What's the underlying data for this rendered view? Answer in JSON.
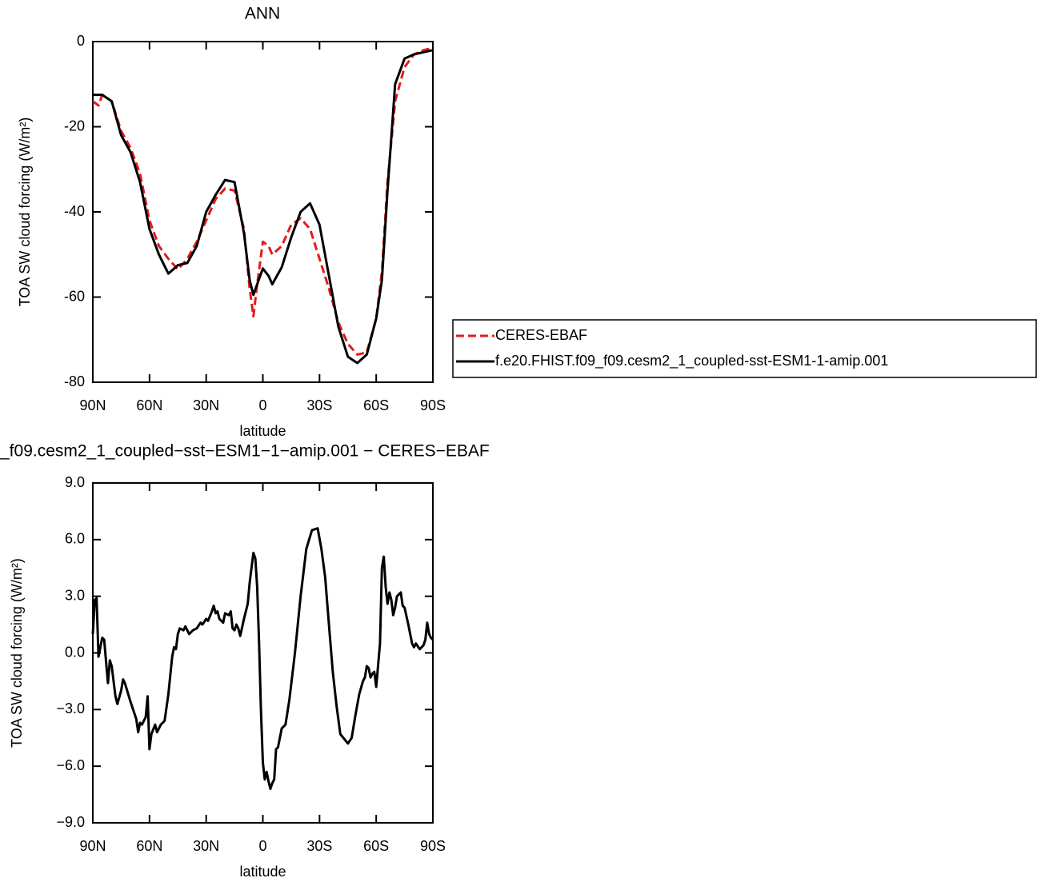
{
  "chart_data": [
    {
      "type": "line",
      "title": "ANN",
      "xlabel": "latitude",
      "ylabel": "TOA SW cloud forcing (W/m²)",
      "xlim": [
        90,
        -90
      ],
      "xticks": [
        {
          "value": 90,
          "label": "90N"
        },
        {
          "value": 60,
          "label": "60N"
        },
        {
          "value": 30,
          "label": "30N"
        },
        0,
        {
          "value": -30,
          "label": "30S"
        },
        {
          "value": -60,
          "label": "60S"
        },
        {
          "value": -90,
          "label": "90S"
        }
      ],
      "ylim": [
        -80,
        0
      ],
      "yticks": [
        0,
        -20,
        -40,
        -60,
        -80
      ],
      "x": [
        90,
        87,
        85,
        80,
        75,
        70,
        65,
        60,
        55,
        50,
        45,
        40,
        35,
        30,
        25,
        20,
        15,
        10,
        7,
        5,
        3,
        0,
        -3,
        -5,
        -10,
        -15,
        -20,
        -25,
        -30,
        -35,
        -40,
        -45,
        -50,
        -55,
        -60,
        -63,
        -66,
        -70,
        -75,
        -80,
        -85,
        -90
      ],
      "series": [
        {
          "name": "CERES-EBAF",
          "color": "#e41a1c",
          "style": "dashed",
          "values": [
            -14,
            -15,
            -12.5,
            -14,
            -21,
            -25,
            -31,
            -42,
            -48,
            -51,
            -53.5,
            -51,
            -47,
            -42,
            -37,
            -34.5,
            -35,
            -44,
            -58,
            -64.5,
            -57,
            -47,
            -48,
            -50,
            -48,
            -43,
            -41.5,
            -44,
            -51,
            -58,
            -66,
            -71,
            -73.5,
            -73,
            -65,
            -54,
            -33,
            -14,
            -6,
            -3,
            -2,
            -1.5
          ]
        },
        {
          "name": "f.e20.FHIST.f09_f09.cesm2_1_coupled-sst-ESM1-1-amip.001",
          "color": "#000000",
          "style": "solid",
          "values": [
            -12.5,
            -12.5,
            -12.5,
            -14,
            -22,
            -26,
            -33,
            -44,
            -50,
            -54.5,
            -52.5,
            -52,
            -48,
            -40,
            -36,
            -32.5,
            -33,
            -45,
            -56,
            -59.5,
            -57,
            -53.3,
            -55,
            -57,
            -53,
            -46,
            -40,
            -38,
            -43,
            -55,
            -67,
            -74,
            -75.5,
            -73.5,
            -65,
            -56,
            -35,
            -10,
            -4,
            -3,
            -2.5,
            -2
          ]
        }
      ]
    },
    {
      "type": "line",
      "title": "_f09.cesm2_1_coupled−sst−ESM1−1−amip.001 − CERES−EBAF",
      "xlabel": "latitude",
      "ylabel": "TOA SW cloud forcing (W/m²)",
      "xlim": [
        90,
        -90
      ],
      "xticks": [
        {
          "value": 90,
          "label": "90N"
        },
        {
          "value": 60,
          "label": "60N"
        },
        {
          "value": 30,
          "label": "30N"
        },
        0,
        {
          "value": -30,
          "label": "30S"
        },
        {
          "value": -60,
          "label": "60S"
        },
        {
          "value": -90,
          "label": "90S"
        }
      ],
      "ylim": [
        -9,
        9
      ],
      "yticks": [
        {
          "value": 9,
          "label": "9.0"
        },
        {
          "value": 6,
          "label": "6.0"
        },
        {
          "value": 3,
          "label": "3.0"
        },
        {
          "value": 0,
          "label": "0.0"
        },
        {
          "value": -3,
          "label": "−3.0"
        },
        {
          "value": -6,
          "label": "−6.0"
        },
        {
          "value": -9,
          "label": "−9.0"
        }
      ],
      "x": [
        90,
        89,
        88,
        87,
        86,
        85,
        84,
        82,
        81,
        80,
        78,
        77,
        75,
        74,
        73,
        70,
        67,
        66,
        65,
        64,
        62,
        61,
        60,
        59,
        57,
        56,
        54,
        52,
        50,
        48,
        47,
        46,
        45,
        44,
        42,
        41,
        39,
        37,
        35,
        33,
        32,
        30,
        29,
        27,
        26,
        25,
        24,
        23,
        21,
        20,
        18,
        17,
        16,
        15,
        14,
        13,
        12,
        10,
        8,
        7,
        6,
        5,
        4,
        3,
        2,
        1,
        0,
        -1,
        -2,
        -3,
        -4,
        -5,
        -6,
        -7,
        -8,
        -10,
        -12,
        -14,
        -17,
        -20,
        -23,
        -26,
        -29,
        -31,
        -33,
        -35,
        -37,
        -39,
        -41,
        -45,
        -47,
        -49,
        -51,
        -53,
        -54,
        -55,
        -56,
        -57,
        -58,
        -59,
        -60,
        -62,
        -63,
        -64,
        -65,
        -66,
        -67,
        -68,
        -69,
        -70,
        -71,
        -73,
        -74,
        -75,
        -77,
        -79,
        -80,
        -81,
        -83,
        -85,
        -86,
        -87,
        -88,
        -89,
        -90
      ],
      "series": [
        {
          "color": "#000000",
          "style": "solid",
          "values": [
            1.0,
            2.8,
            2.9,
            -0.2,
            0.3,
            0.8,
            0.7,
            -1.6,
            -0.4,
            -0.7,
            -2.3,
            -2.7,
            -2.0,
            -1.4,
            -1.6,
            -2.6,
            -3.5,
            -4.2,
            -3.7,
            -3.8,
            -3.4,
            -2.3,
            -5.1,
            -4.3,
            -3.8,
            -4.2,
            -3.8,
            -3.6,
            -2.2,
            -0.2,
            0.3,
            0.2,
            1.0,
            1.3,
            1.2,
            1.4,
            1.0,
            1.2,
            1.3,
            1.6,
            1.5,
            1.8,
            1.7,
            2.2,
            2.5,
            2.1,
            2.2,
            1.8,
            1.6,
            2.1,
            2.0,
            2.2,
            1.3,
            1.2,
            1.5,
            1.3,
            0.9,
            1.8,
            2.6,
            3.7,
            4.5,
            5.3,
            5.0,
            3.5,
            0.5,
            -3.0,
            -5.8,
            -6.7,
            -6.3,
            -6.8,
            -7.2,
            -6.9,
            -6.7,
            -5.1,
            -5.0,
            -4.0,
            -3.8,
            -2.5,
            0,
            3.0,
            5.5,
            6.5,
            6.6,
            5.5,
            4.0,
            1.5,
            -1.0,
            -2.8,
            -4.3,
            -4.8,
            -4.5,
            -3.3,
            -2.2,
            -1.5,
            -1.3,
            -0.7,
            -0.8,
            -1.3,
            -1.1,
            -1.0,
            -1.8,
            0.5,
            4.5,
            5.1,
            3.5,
            2.6,
            3.2,
            2.8,
            2.0,
            2.4,
            3.0,
            3.2,
            2.5,
            2.4,
            1.5,
            0.5,
            0.3,
            0.5,
            0.2,
            0.4,
            0.7,
            1.6,
            1.0,
            0.8,
            0.7
          ]
        }
      ]
    }
  ]
}
